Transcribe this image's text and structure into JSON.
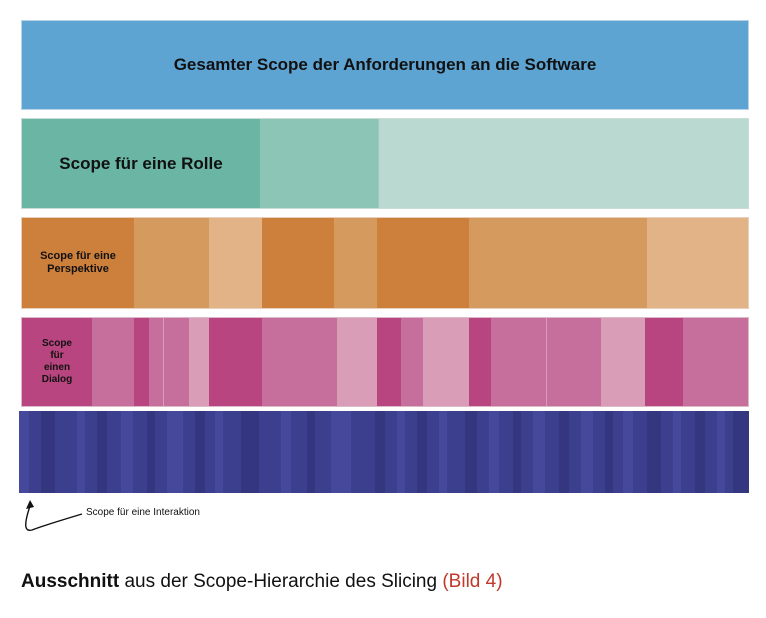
{
  "diagram": {
    "level1": {
      "label": "Gesamter Scope der Anforderungen an die Software",
      "color": "#5ea4d3"
    },
    "level2": {
      "label": "Scope für eine Rolle",
      "colors": [
        "#6bb5a4",
        "#8cc4b6",
        "#b9d9d1"
      ]
    },
    "level3": {
      "label": "Scope für eine Perspektive",
      "colors": [
        "#cd7f3c",
        "#d59a5e",
        "#e1b386"
      ]
    },
    "level4": {
      "label": "Scope für einen Dialog",
      "colors": [
        "#b8457f",
        "#c66f9c",
        "#d99db8"
      ]
    },
    "level5": {
      "label": "Scope für eine Interaktion",
      "colors": [
        "#3c3e8e",
        "#34367f",
        "#46489c"
      ]
    }
  },
  "caption": {
    "bold": "Ausschnitt",
    "text": " aus der Scope-Hierarchie des Slicing ",
    "ref": "(Bild 4)"
  }
}
